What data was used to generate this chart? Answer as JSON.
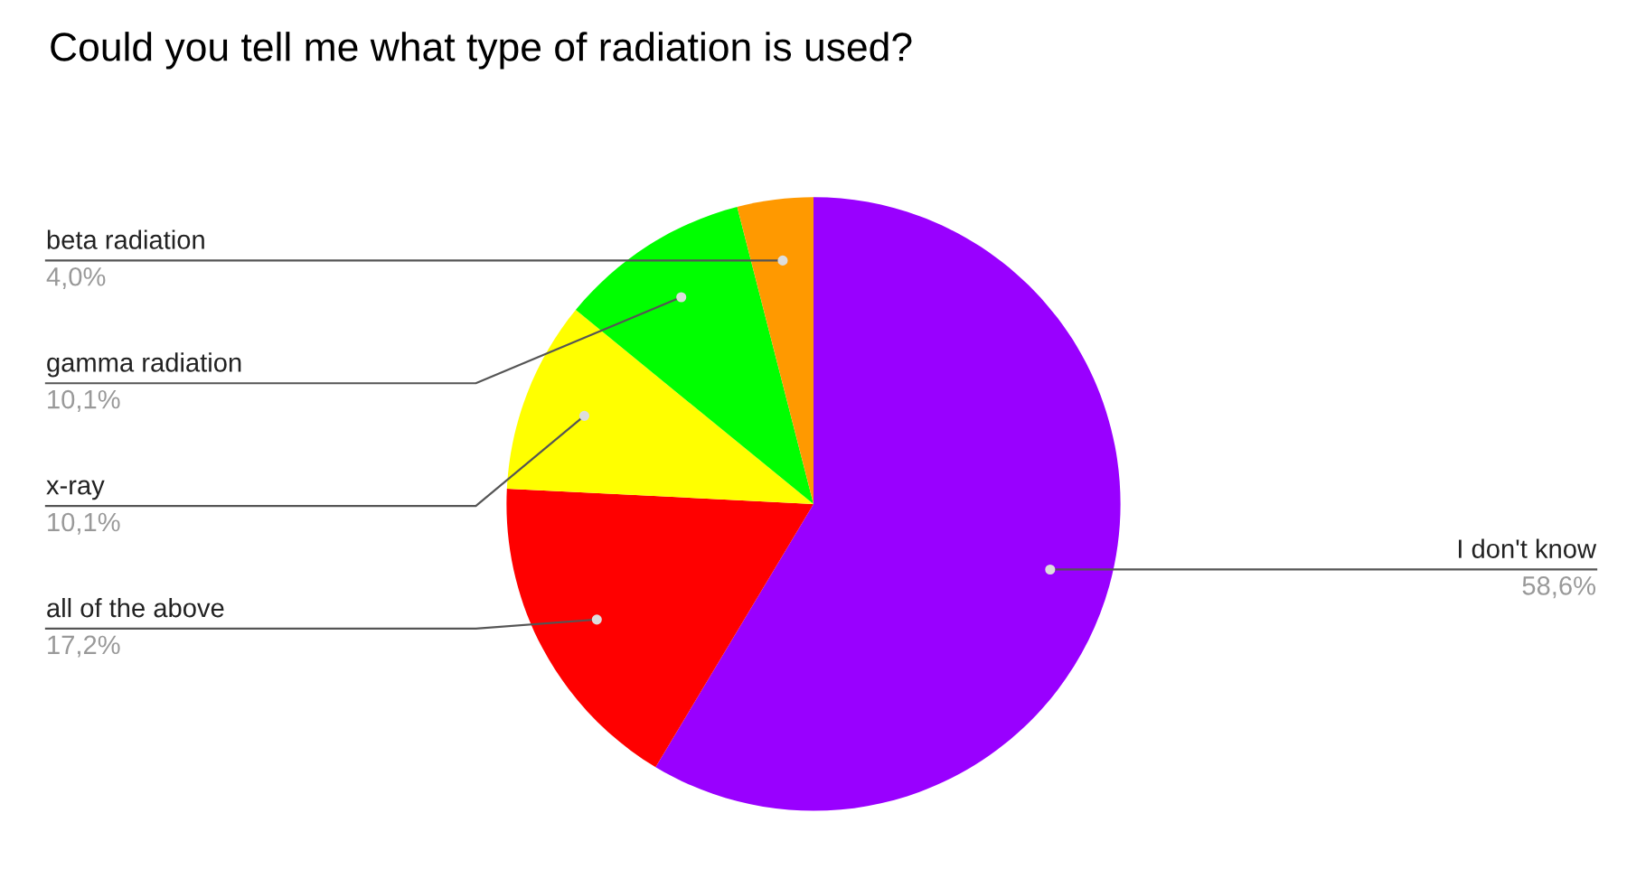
{
  "chart_data": {
    "type": "pie",
    "title": "Could you tell me what type of radiation is used?",
    "categories": [
      "I don't know",
      "all of the above",
      "x-ray",
      "gamma radiation",
      "beta radiation"
    ],
    "values": [
      58.6,
      17.2,
      10.1,
      10.1,
      4.0
    ],
    "value_labels": [
      "58,6%",
      "17,2%",
      "10,1%",
      "10,1%",
      "4,0%"
    ],
    "colors": [
      "#9900ff",
      "#ff0000",
      "#ffff00",
      "#00ff00",
      "#ff9900"
    ],
    "legend": false
  }
}
